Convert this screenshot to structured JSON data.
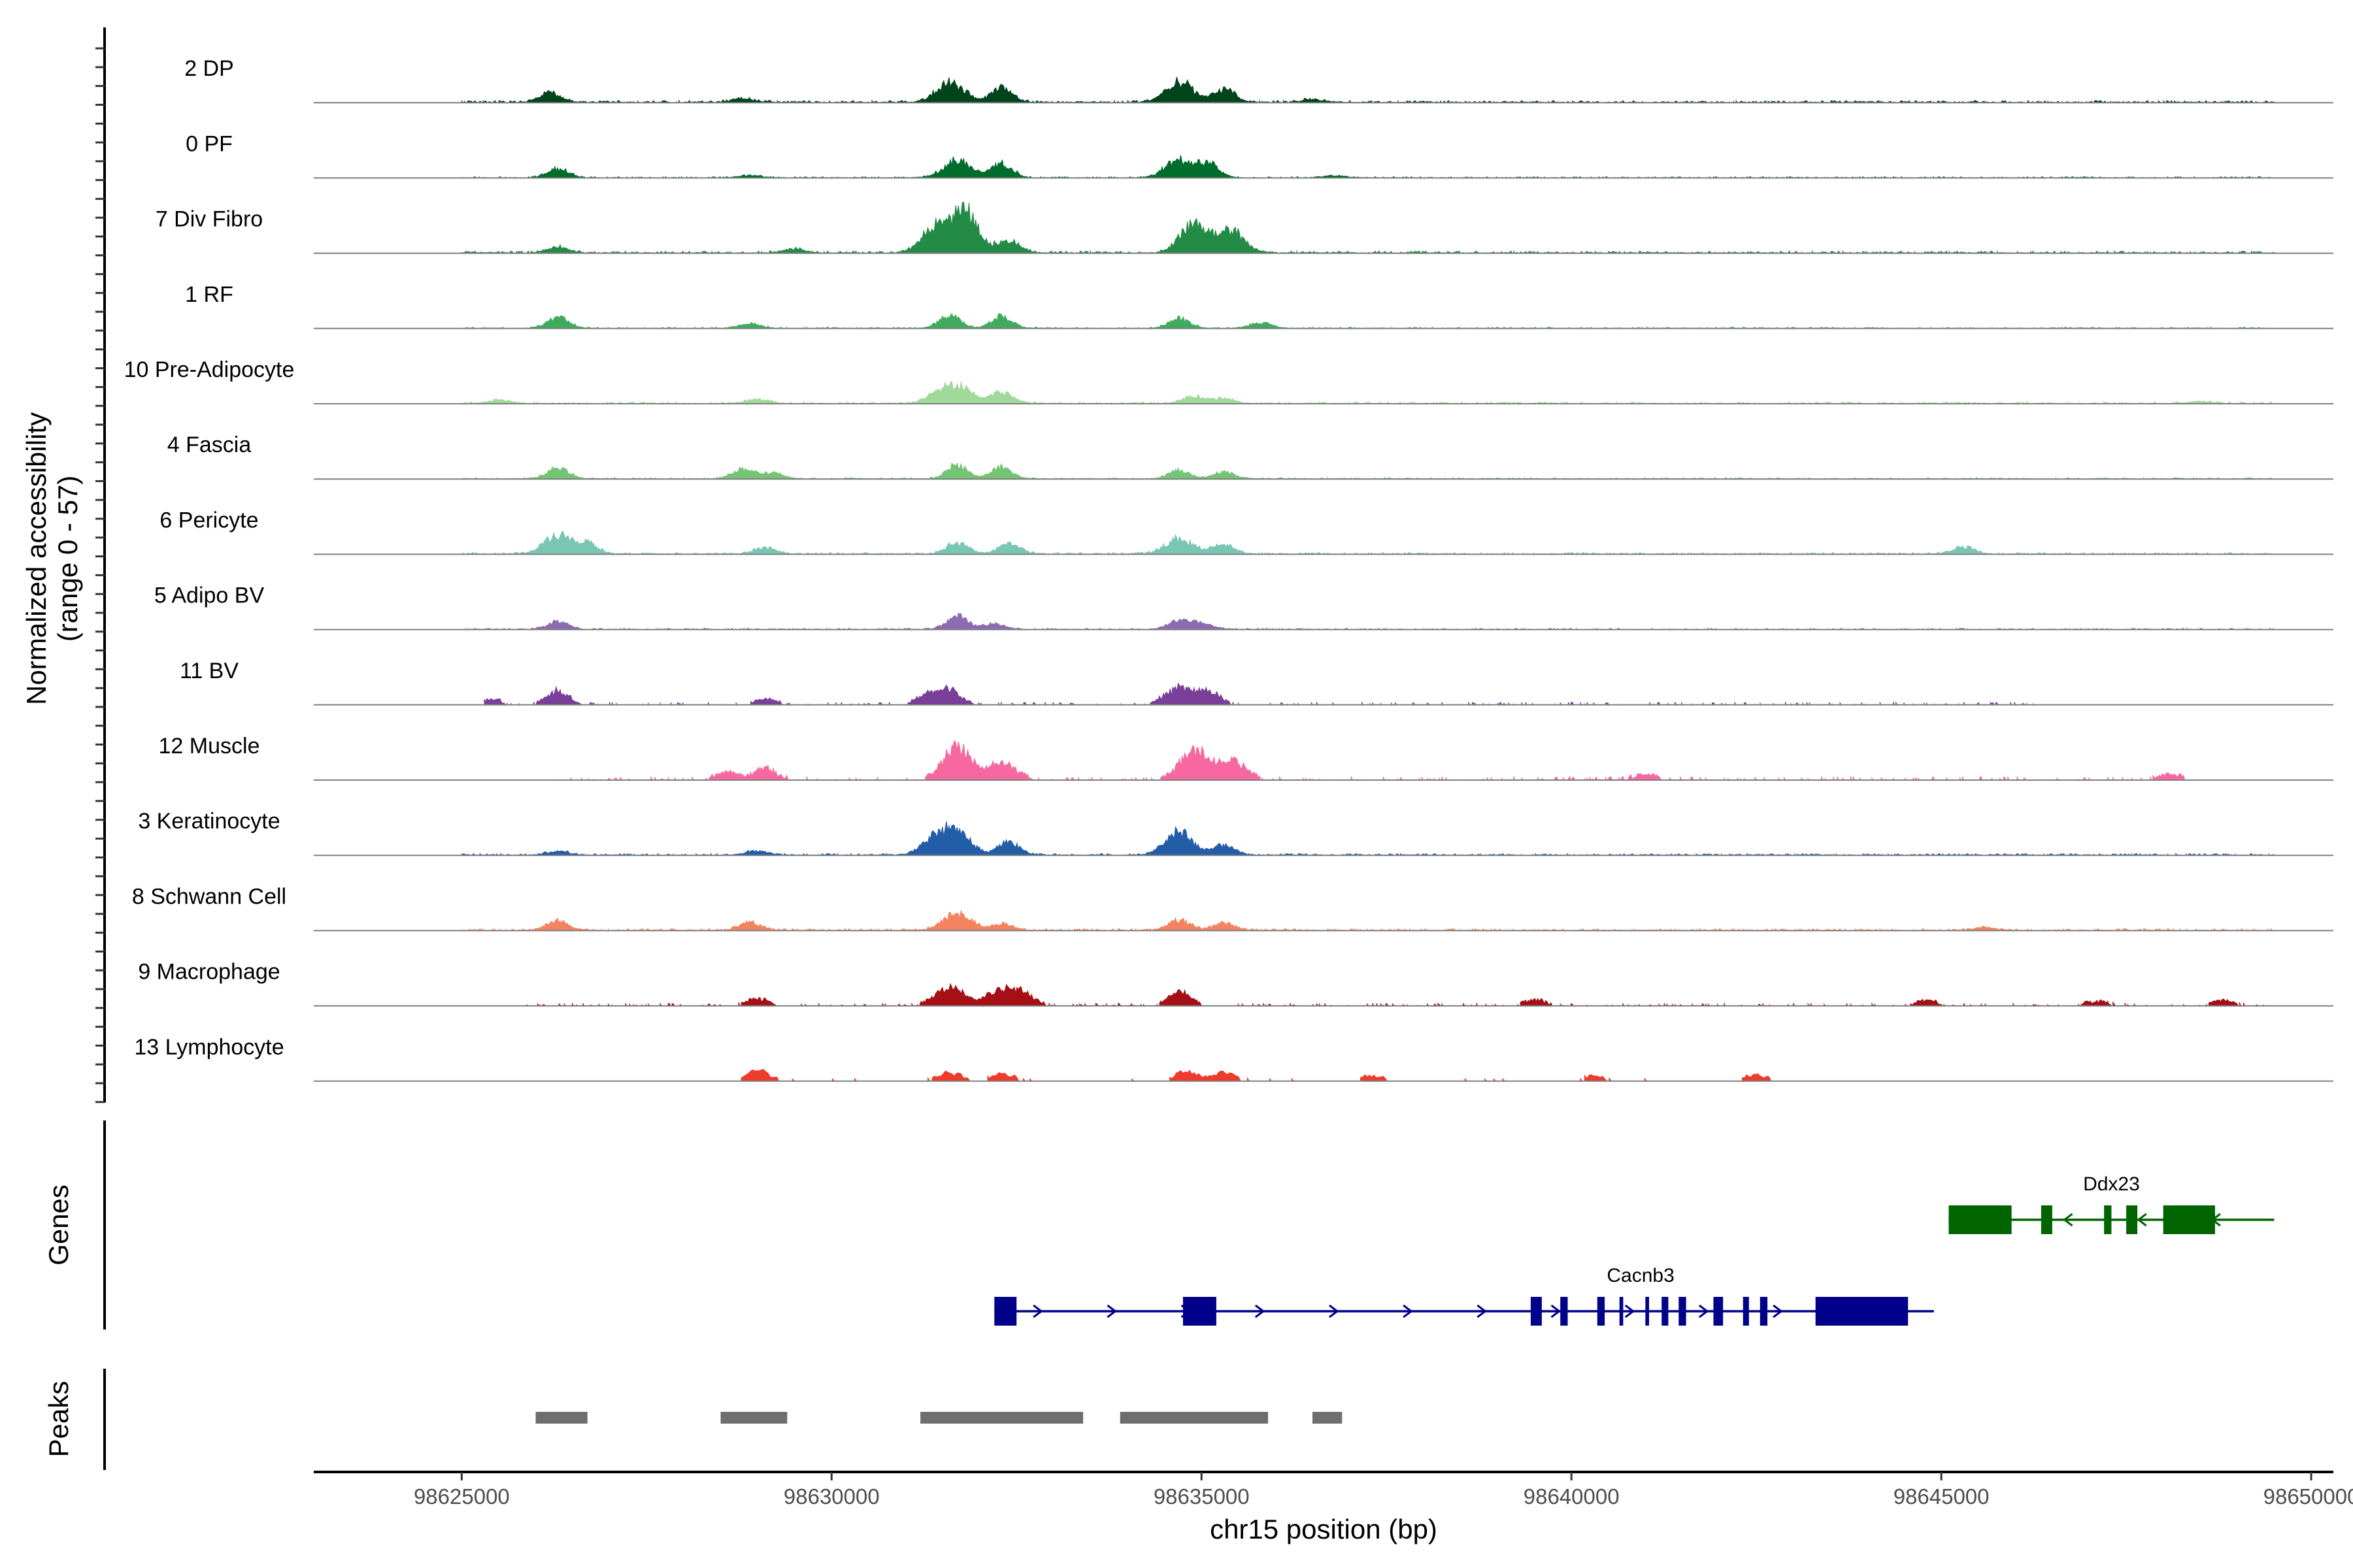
{
  "chart_data": {
    "type": "area",
    "title": "",
    "chromosome": "chr15",
    "xlim": [
      98623000,
      98650300
    ],
    "xlabel": "chr15 position (bp)",
    "ylabel": "Normalized accessibility",
    "ylabel_range": "(range 0 - 57)",
    "ylim": [
      0,
      57
    ],
    "x_ticks": [
      98625000,
      98630000,
      98635000,
      98640000,
      98645000,
      98650000
    ],
    "x_tick_labels": [
      "98625000",
      "98630000",
      "98635000",
      "98640000",
      "98645000",
      "98650000"
    ],
    "panel_labels": {
      "genes": "Genes",
      "peaks": "Peaks"
    },
    "tracks": [
      {
        "name": "2 DP",
        "color": "#00441b",
        "peaks": [
          [
            98626200,
            14
          ],
          [
            98631600,
            28
          ],
          [
            98632300,
            20
          ],
          [
            98634700,
            29
          ],
          [
            98635300,
            18
          ],
          [
            98628800,
            5
          ],
          [
            98636500,
            4
          ]
        ],
        "noise": 2.5,
        "range": [
          98625000,
          98649500
        ]
      },
      {
        "name": "0 PF",
        "color": "#006d2c",
        "peaks": [
          [
            98626300,
            13
          ],
          [
            98631700,
            24
          ],
          [
            98632300,
            20
          ],
          [
            98634700,
            25
          ],
          [
            98635100,
            19
          ],
          [
            98628900,
            3
          ],
          [
            98636800,
            3
          ]
        ],
        "noise": 1.5,
        "range": [
          98625000,
          98649500
        ]
      },
      {
        "name": "7 Div Fibro",
        "color": "#238b45",
        "peaks": [
          [
            98631400,
            34
          ],
          [
            98631800,
            57
          ],
          [
            98632400,
            18
          ],
          [
            98634900,
            40
          ],
          [
            98635400,
            30
          ],
          [
            98626300,
            8
          ],
          [
            98629500,
            6
          ]
        ],
        "noise": 2.5,
        "range": [
          98625000,
          98649500
        ]
      },
      {
        "name": "1 RF",
        "color": "#41ab5d",
        "peaks": [
          [
            98626300,
            16
          ],
          [
            98631600,
            18
          ],
          [
            98632300,
            16
          ],
          [
            98634700,
            14
          ],
          [
            98635800,
            8
          ],
          [
            98628900,
            6
          ]
        ],
        "noise": 1.5,
        "range": [
          98625000,
          98649500
        ]
      },
      {
        "name": "10 Pre-Adipocyte",
        "color": "#a1d99b",
        "peaks": [
          [
            98631700,
            25
          ],
          [
            98632300,
            17
          ],
          [
            98631400,
            12
          ],
          [
            98634900,
            10
          ],
          [
            98635300,
            7
          ],
          [
            98629000,
            6
          ],
          [
            98625500,
            5
          ],
          [
            98648500,
            3
          ]
        ],
        "noise": 2,
        "range": [
          98625000,
          98649500
        ]
      },
      {
        "name": "4 Fascia",
        "color": "#74c476",
        "peaks": [
          [
            98626300,
            16
          ],
          [
            98628800,
            14
          ],
          [
            98631700,
            20
          ],
          [
            98632300,
            16
          ],
          [
            98634700,
            12
          ],
          [
            98635300,
            10
          ],
          [
            98629200,
            8
          ]
        ],
        "noise": 1.5,
        "range": [
          98625000,
          98649500
        ]
      },
      {
        "name": "6 Pericyte",
        "color": "#78c6b3",
        "peaks": [
          [
            98626300,
            27
          ],
          [
            98626700,
            14
          ],
          [
            98629100,
            9
          ],
          [
            98631700,
            16
          ],
          [
            98632400,
            14
          ],
          [
            98634700,
            22
          ],
          [
            98635300,
            14
          ],
          [
            98645300,
            10
          ]
        ],
        "noise": 2,
        "range": [
          98625000,
          98649500
        ]
      },
      {
        "name": "5 Adipo BV",
        "color": "#8c6bb1",
        "peaks": [
          [
            98626300,
            11
          ],
          [
            98631700,
            19
          ],
          [
            98632200,
            8
          ],
          [
            98634700,
            13
          ],
          [
            98635000,
            9
          ]
        ],
        "noise": 1.5,
        "range": [
          98625000,
          98649500
        ]
      },
      {
        "name": "11 BV",
        "color": "#7a3f98",
        "peaks": [
          [
            98626300,
            18
          ],
          [
            98631600,
            20
          ],
          [
            98631300,
            14
          ],
          [
            98634700,
            22
          ],
          [
            98635100,
            16
          ],
          [
            98625400,
            6
          ],
          [
            98629100,
            6
          ]
        ],
        "noise": 3,
        "range": [
          98625300,
          98646300
        ],
        "sparse": true
      },
      {
        "name": "12 Muscle",
        "color": "#f768a1",
        "peaks": [
          [
            98631700,
            44
          ],
          [
            98632300,
            22
          ],
          [
            98634900,
            39
          ],
          [
            98635400,
            25
          ],
          [
            98629100,
            14
          ],
          [
            98628600,
            10
          ],
          [
            98641000,
            6
          ],
          [
            98648100,
            6
          ]
        ],
        "noise": 4,
        "range": [
          98626200,
          98648300
        ],
        "sparse": true
      },
      {
        "name": "3 Keratinocyte",
        "color": "#225ea8",
        "peaks": [
          [
            98631400,
            22
          ],
          [
            98631700,
            30
          ],
          [
            98632400,
            18
          ],
          [
            98634700,
            33
          ],
          [
            98635300,
            14
          ],
          [
            98626300,
            5
          ],
          [
            98629000,
            6
          ]
        ],
        "noise": 2,
        "range": [
          98625000,
          98649500
        ]
      },
      {
        "name": "8 Schwann Cell",
        "color": "#f4845f",
        "peaks": [
          [
            98626300,
            13
          ],
          [
            98628900,
            11
          ],
          [
            98631700,
            24
          ],
          [
            98632300,
            9
          ],
          [
            98634700,
            15
          ],
          [
            98635300,
            10
          ],
          [
            98645600,
            4
          ]
        ],
        "noise": 2,
        "range": [
          98625000,
          98649500
        ]
      },
      {
        "name": "9 Macrophage",
        "color": "#a50f15",
        "peaks": [
          [
            98631600,
            25
          ],
          [
            98632300,
            21
          ],
          [
            98632600,
            14
          ],
          [
            98634700,
            18
          ],
          [
            98629000,
            8
          ],
          [
            98639500,
            7
          ],
          [
            98644800,
            6
          ],
          [
            98647100,
            5
          ],
          [
            98648800,
            6
          ]
        ],
        "noise": 3,
        "range": [
          98625600,
          98649400
        ],
        "sparse": true
      },
      {
        "name": "13 Lymphocyte",
        "color": "#ef3b2c",
        "peaks": [
          [
            98629000,
            14
          ],
          [
            98631600,
            11
          ],
          [
            98632300,
            9
          ],
          [
            98634800,
            12
          ],
          [
            98635300,
            10
          ],
          [
            98637300,
            6
          ],
          [
            98640300,
            6
          ],
          [
            98642500,
            8
          ]
        ],
        "noise": 3,
        "range": [
          98628700,
          98642700
        ],
        "sparse": true,
        "blocky": true
      }
    ],
    "genes": [
      {
        "name": "Cacnb3",
        "color": "#00008b",
        "start": 98632200,
        "end": 98644900,
        "strand": "+",
        "exons": [
          [
            98632200,
            98632500
          ],
          [
            98634750,
            98635200
          ],
          [
            98639450,
            98639600
          ],
          [
            98639850,
            98639950
          ],
          [
            98640350,
            98640450
          ],
          [
            98640650,
            98640700
          ],
          [
            98641000,
            98641050
          ],
          [
            98641220,
            98641310
          ],
          [
            98641450,
            98641550
          ],
          [
            98641920,
            98642050
          ],
          [
            98642320,
            98642400
          ],
          [
            98642550,
            98642650
          ],
          [
            98643300,
            98644550
          ]
        ]
      },
      {
        "name": "Ddx23",
        "color": "#006400",
        "start": 98645100,
        "end": 98649500,
        "strand": "-",
        "exons": [
          [
            98645100,
            98645950
          ],
          [
            98646350,
            98646500
          ],
          [
            98647200,
            98647300
          ],
          [
            98647500,
            98647650
          ],
          [
            98648000,
            98648700
          ]
        ]
      }
    ],
    "peaks": [
      [
        98626000,
        98626700
      ],
      [
        98628500,
        98629400
      ],
      [
        98631200,
        98633400
      ],
      [
        98633900,
        98635900
      ],
      [
        98636500,
        98636900
      ]
    ]
  }
}
